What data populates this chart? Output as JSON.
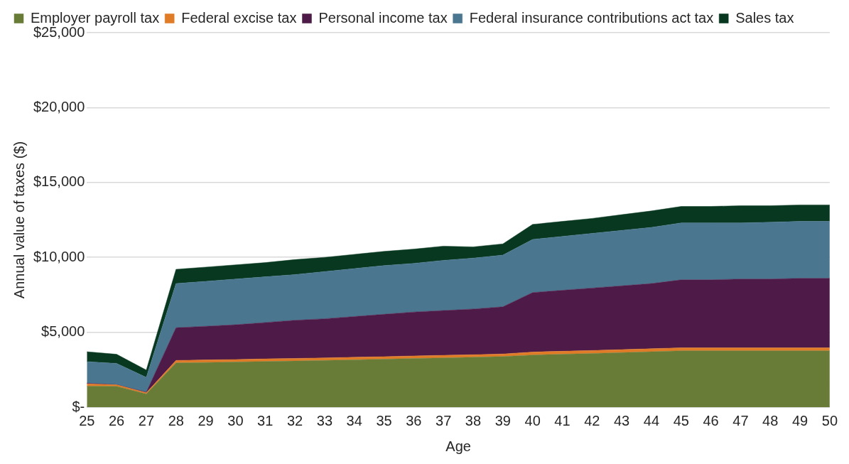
{
  "chart_data": {
    "type": "area",
    "stacked": true,
    "xlabel": "Age",
    "ylabel": "Annual value of taxes ($)",
    "categories": [
      "25",
      "26",
      "27",
      "28",
      "29",
      "30",
      "31",
      "32",
      "33",
      "34",
      "35",
      "36",
      "37",
      "38",
      "39",
      "40",
      "41",
      "42",
      "43",
      "44",
      "45",
      "46",
      "47",
      "48",
      "49",
      "50"
    ],
    "ylim": [
      0,
      25000
    ],
    "yticks": [
      {
        "value": 0,
        "label": "$-"
      },
      {
        "value": 5000,
        "label": "$5,000"
      },
      {
        "value": 10000,
        "label": "$10,000"
      },
      {
        "value": 15000,
        "label": "$15,000"
      },
      {
        "value": 20000,
        "label": "$20,000"
      },
      {
        "value": 25000,
        "label": "$25,000"
      }
    ],
    "grid": "y",
    "legend": "top",
    "series": [
      {
        "name": "Employer payroll tax",
        "color": "#687c37",
        "values": [
          1400,
          1390,
          880,
          2950,
          2980,
          3010,
          3050,
          3080,
          3120,
          3160,
          3200,
          3250,
          3290,
          3330,
          3380,
          3480,
          3530,
          3580,
          3640,
          3700,
          3760,
          3760,
          3760,
          3760,
          3760,
          3760
        ]
      },
      {
        "name": "Federal excise tax",
        "color": "#e07b28",
        "values": [
          150,
          100,
          80,
          170,
          170,
          170,
          170,
          170,
          170,
          170,
          170,
          170,
          170,
          170,
          170,
          200,
          200,
          200,
          200,
          200,
          200,
          200,
          200,
          200,
          200,
          200
        ]
      },
      {
        "name": "Personal income tax",
        "color": "#4e1b48",
        "values": [
          50,
          10,
          40,
          2180,
          2250,
          2320,
          2430,
          2550,
          2610,
          2720,
          2830,
          2930,
          2990,
          3050,
          3150,
          3970,
          4070,
          4170,
          4260,
          4350,
          4540,
          4540,
          4590,
          4590,
          4640,
          4640
        ]
      },
      {
        "name": "Federal insurance contributions act tax",
        "color": "#4a778f",
        "values": [
          1440,
          1420,
          990,
          2950,
          3000,
          3050,
          3050,
          3050,
          3150,
          3200,
          3250,
          3250,
          3350,
          3400,
          3450,
          3550,
          3600,
          3650,
          3700,
          3750,
          3800,
          3800,
          3750,
          3800,
          3800,
          3800
        ]
      },
      {
        "name": "Sales tax",
        "color": "#093820",
        "values": [
          660,
          610,
          490,
          950,
          950,
          950,
          950,
          1000,
          950,
          950,
          950,
          950,
          950,
          750,
          750,
          1000,
          1000,
          1000,
          1050,
          1100,
          1100,
          1100,
          1150,
          1100,
          1100,
          1100
        ]
      }
    ]
  }
}
